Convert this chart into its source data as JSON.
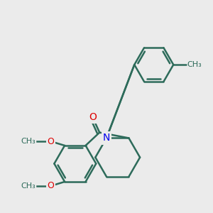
{
  "background_color": "#ebebeb",
  "bond_color": "#2d6b5a",
  "bond_width": 1.8,
  "atom_colors": {
    "N": "#0000ee",
    "O": "#dd0000",
    "C": "#2d6b5a"
  },
  "font_size": 9,
  "figsize": [
    3.0,
    3.0
  ],
  "dpi": 100,
  "methyl_label": "CH₃",
  "methoxy_label": "O",
  "methoxy_ch3": "CH₃",
  "N_label": "N",
  "O_label": "O"
}
